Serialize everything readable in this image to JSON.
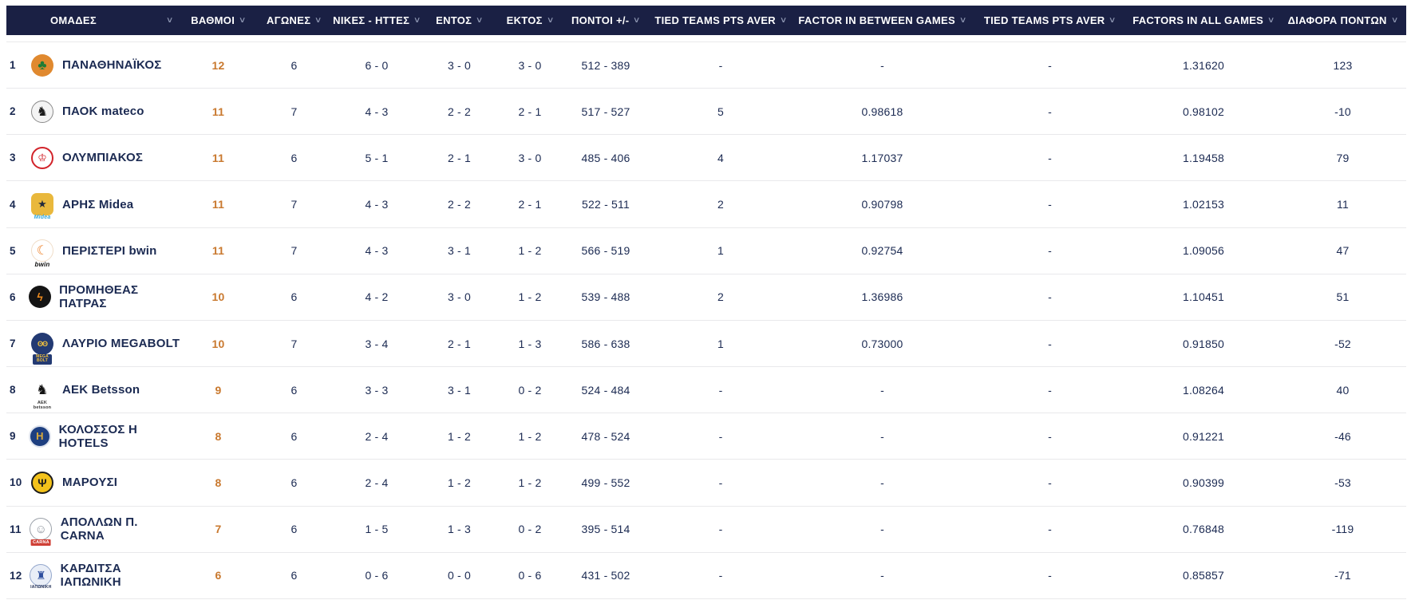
{
  "icons": {
    "chevron_down": "∨"
  },
  "colors": {
    "header_bg": "#1a2044",
    "header_text": "#ffffff",
    "chevron": "#9099b4",
    "text_navy": "#1b2a52",
    "points_orange": "#c9792f",
    "divider": "#e9e9eb"
  },
  "table": {
    "columns": [
      {
        "label": "ΟΜΑΔΕΣ"
      },
      {
        "label": "ΒΑΘΜΟΙ"
      },
      {
        "label": "ΑΓΩΝΕΣ"
      },
      {
        "label": "ΝΙΚΕΣ - ΗΤΤΕΣ"
      },
      {
        "label": "ΕΝΤΟΣ"
      },
      {
        "label": "ΕΚΤΟΣ"
      },
      {
        "label": "ΠΟΝΤΟΙ +/-"
      },
      {
        "label": "TIED TEAMS PTS AVER"
      },
      {
        "label": "FACTOR IN BETWEEN GAMES"
      },
      {
        "label": "TIED TEAMS PTS AVER"
      },
      {
        "label": "FACTORS IN ALL GAMES"
      },
      {
        "label": "ΔΙΑΦΟΡΑ ΠΟΝΤΩΝ"
      }
    ],
    "rows": [
      {
        "rank": "1",
        "team": "ΠΑΝΑΘΗΝΑΪΚΟΣ",
        "points": "12",
        "games": "6",
        "wins_losses": "6 - 0",
        "home": "3 - 0",
        "away": "3 - 0",
        "points_plus_minus": "512 - 389",
        "tied_pts_aver_1": "-",
        "factor_between": "-",
        "tied_pts_aver_2": "-",
        "factor_all": "1.31620",
        "point_diff": "123",
        "logo": {
          "glyph": "♣",
          "style": "background:#e0892f;color:#1d7c35;font-size:17px;",
          "sub": "",
          "sub_style": ""
        }
      },
      {
        "rank": "2",
        "team": "ΠΑΟΚ mateco",
        "points": "11",
        "games": "7",
        "wins_losses": "4 - 3",
        "home": "2 - 2",
        "away": "2 - 1",
        "points_plus_minus": "517 - 527",
        "tied_pts_aver_1": "5",
        "factor_between": "0.98618",
        "tied_pts_aver_2": "-",
        "factor_all": "0.98102",
        "point_diff": "-10",
        "logo": {
          "glyph": "♞",
          "style": "background:#f4f4f4;border:1px solid #8a8a8a;color:#1c1c1c;font-size:16px;",
          "sub": "",
          "sub_style": ""
        }
      },
      {
        "rank": "3",
        "team": "ΟΛΥΜΠΙΑΚΟΣ",
        "points": "11",
        "games": "6",
        "wins_losses": "5 - 1",
        "home": "2 - 1",
        "away": "3 - 0",
        "points_plus_minus": "485 - 406",
        "tied_pts_aver_1": "4",
        "factor_between": "1.17037",
        "tied_pts_aver_2": "-",
        "factor_all": "1.19458",
        "point_diff": "79",
        "logo": {
          "glyph": "♔",
          "style": "background:#ffffff;border:2px solid #d2232a;color:#d2232a;font-size:13px;",
          "sub": "",
          "sub_style": ""
        }
      },
      {
        "rank": "4",
        "team": "ΑΡΗΣ Midea",
        "points": "11",
        "games": "7",
        "wins_losses": "4 - 3",
        "home": "2 - 2",
        "away": "2 - 1",
        "points_plus_minus": "522 - 511",
        "tied_pts_aver_1": "2",
        "factor_between": "0.90798",
        "tied_pts_aver_2": "-",
        "factor_all": "1.02153",
        "point_diff": "11",
        "logo": {
          "glyph": "★",
          "style": "background:#e9b83c;color:#222a3c;border-radius:7px;font-size:13px;",
          "sub": "Midea",
          "sub_style": "color:#35a8dc;font-style:italic;font-weight:bold;font-size:7px;"
        }
      },
      {
        "rank": "5",
        "team": "ΠΕΡΙΣΤΕΡΙ bwin",
        "points": "11",
        "games": "7",
        "wins_losses": "4 - 3",
        "home": "3 - 1",
        "away": "1 - 2",
        "points_plus_minus": "566 - 519",
        "tied_pts_aver_1": "1",
        "factor_between": "0.92754",
        "tied_pts_aver_2": "-",
        "factor_all": "1.09056",
        "point_diff": "47",
        "logo": {
          "glyph": "☾",
          "style": "background:#ffffff;border:1px solid #f0ddc8;color:#ee7c1f;font-size:16px;",
          "sub": "bwin",
          "sub_style": "color:#111111;font-weight:bold;font-style:italic;font-size:8px;"
        }
      },
      {
        "rank": "6",
        "team": "ΠΡΟΜΗΘΕΑΣ ΠΑΤΡΑΣ",
        "points": "10",
        "games": "6",
        "wins_losses": "4 - 2",
        "home": "3 - 0",
        "away": "1 - 2",
        "points_plus_minus": "539 - 488",
        "tied_pts_aver_1": "2",
        "factor_between": "1.36986",
        "tied_pts_aver_2": "-",
        "factor_all": "1.10451",
        "point_diff": "51",
        "logo": {
          "glyph": "ϟ",
          "style": "background:#141414;color:#ef8b1d;font-size:14px;",
          "sub": "",
          "sub_style": ""
        }
      },
      {
        "rank": "7",
        "team": "ΛΑΥΡΙΟ MEGABOLT",
        "points": "10",
        "games": "7",
        "wins_losses": "3 - 4",
        "home": "2 - 1",
        "away": "1 - 3",
        "points_plus_minus": "586 - 638",
        "tied_pts_aver_1": "1",
        "factor_between": "0.73000",
        "tied_pts_aver_2": "-",
        "factor_all": "0.91850",
        "point_diff": "-52",
        "logo": {
          "glyph": "ʘʘ",
          "style": "background:#233a73;color:#f2c23e;font-size:9px;letter-spacing:-1px;",
          "sub": "MEGA BOLT",
          "sub_style": "background:#233a73;color:#f2c23e;font-size:5px;font-weight:bold;padding:1px 2px;border-radius:2px;width:20px;"
        }
      },
      {
        "rank": "8",
        "team": "ΑΕΚ Betsson",
        "points": "9",
        "games": "6",
        "wins_losses": "3 - 3",
        "home": "3 - 1",
        "away": "0 - 2",
        "points_plus_minus": "524 - 484",
        "tied_pts_aver_1": "-",
        "factor_between": "-",
        "tied_pts_aver_2": "-",
        "factor_all": "1.08264",
        "point_diff": "40",
        "logo": {
          "glyph": "♞",
          "style": "background:#ffffff;color:#141414;font-size:17px;",
          "sub": "AEK betsson",
          "sub_style": "color:#333333;font-size:5.5px;font-weight:bold;"
        }
      },
      {
        "rank": "9",
        "team": "ΚΟΛΟΣΣΟΣ Η HOTELS",
        "points": "8",
        "games": "6",
        "wins_losses": "2 - 4",
        "home": "1 - 2",
        "away": "1 - 2",
        "points_plus_minus": "478 - 524",
        "tied_pts_aver_1": "-",
        "factor_between": "-",
        "tied_pts_aver_2": "-",
        "factor_all": "0.91221",
        "point_diff": "-46",
        "logo": {
          "glyph": "Η",
          "style": "background:#1e3f80;border:2px solid #dfe4ee;color:#d9a93a;font-size:13px;",
          "sub": "",
          "sub_style": ""
        }
      },
      {
        "rank": "10",
        "team": "ΜΑΡΟΥΣΙ",
        "points": "8",
        "games": "6",
        "wins_losses": "2 - 4",
        "home": "1 - 2",
        "away": "1 - 2",
        "points_plus_minus": "499 - 552",
        "tied_pts_aver_1": "-",
        "factor_between": "-",
        "tied_pts_aver_2": "-",
        "factor_all": "0.90399",
        "point_diff": "-53",
        "logo": {
          "glyph": "Ψ",
          "style": "background:#f3c21b;border:2px solid #1c1c1c;color:#1c1c1c;font-size:14px;",
          "sub": "",
          "sub_style": ""
        }
      },
      {
        "rank": "11",
        "team": "ΑΠΟΛΛΩΝ Π. CARNA",
        "points": "7",
        "games": "6",
        "wins_losses": "1 - 5",
        "home": "1 - 3",
        "away": "0 - 2",
        "points_plus_minus": "395 - 514",
        "tied_pts_aver_1": "-",
        "factor_between": "-",
        "tied_pts_aver_2": "-",
        "factor_all": "0.76848",
        "point_diff": "-119",
        "logo": {
          "glyph": "☺",
          "style": "background:#ffffff;border:1px solid #9aa0a8;color:#8d939c;font-size:15px;",
          "sub": "CARNA",
          "sub_style": "background:#cf4036;color:#ffffff;font-size:5.5px;font-weight:bold;padding:1px 2px;border-radius:1px;"
        }
      },
      {
        "rank": "12",
        "team": "ΚΑΡΔΙΤΣΑ ΙΑΠΩΝΙΚΗ",
        "points": "6",
        "games": "6",
        "wins_losses": "0 - 6",
        "home": "0 - 0",
        "away": "0 - 6",
        "points_plus_minus": "431 - 502",
        "tied_pts_aver_1": "-",
        "factor_between": "-",
        "tied_pts_aver_2": "-",
        "factor_all": "0.85857",
        "point_diff": "-71",
        "logo": {
          "glyph": "♜",
          "style": "background:#e9eef7;border:1px solid #94a7cc;color:#2d4e9e;font-size:14px;",
          "sub": "ΙΑΠΩΝΙΚΗ",
          "sub_style": "color:#1b2a52;font-size:5px;font-weight:bold;"
        }
      }
    ]
  }
}
